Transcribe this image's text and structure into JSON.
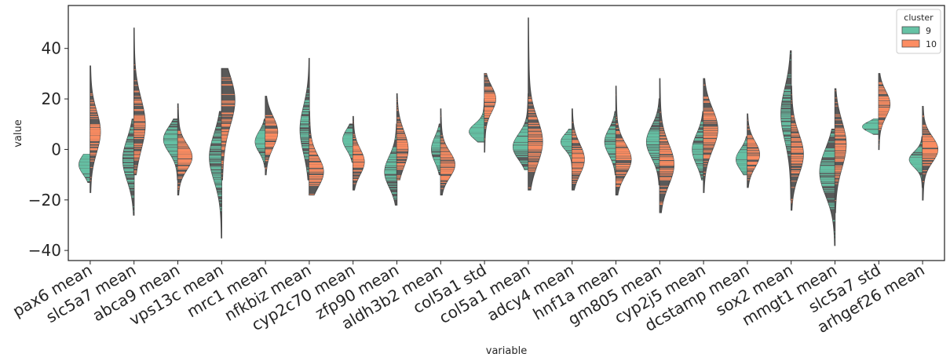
{
  "chart_data": {
    "type": "violin",
    "split": true,
    "inner": "stick",
    "xlabel": "variable",
    "ylabel": "value",
    "ylim": [
      -44,
      57
    ],
    "yticks": [
      -40,
      -20,
      0,
      20,
      40
    ],
    "ytick_labels": [
      "−40",
      "−20",
      "0",
      "20",
      "40"
    ],
    "grid": false,
    "legend": {
      "title": "cluster",
      "placement": "top-right",
      "entries": [
        {
          "label": "9",
          "color": "#66c2a5"
        },
        {
          "label": "10",
          "color": "#fc8d62"
        }
      ]
    },
    "colors": {
      "9": "#66c2a5",
      "10": "#fc8d62",
      "body": "#595959",
      "outline": "#4c4c4c"
    },
    "categories": [
      "pax6 mean",
      "slc5a7 mean",
      "abca9 mean",
      "vps13c mean",
      "mrc1 mean",
      "nfkbiz mean",
      "cyp2c70 mean",
      "zfp90 mean",
      "aldh3b2 mean",
      "col5a1 std",
      "col5a1 mean",
      "adcy4 mean",
      "hnf1a mean",
      "gm805 mean",
      "cyp2j5 mean",
      "dcstamp mean",
      "sox2 mean",
      "mmgt1 mean",
      "slc5a7 std",
      "arhgef26 mean"
    ],
    "series": [
      {
        "name": "9",
        "distributions": [
          {
            "min": -13,
            "max": -2,
            "median": -6,
            "peak": -6,
            "spread": 4,
            "width": 0.55
          },
          {
            "min": -26,
            "max": 12,
            "median": -5,
            "peak": -4,
            "spread": 8,
            "width": 0.55
          },
          {
            "min": -12,
            "max": 12,
            "median": 3,
            "peak": 4,
            "spread": 5,
            "width": 0.7
          },
          {
            "min": -35,
            "max": 15,
            "median": -5,
            "peak": -3,
            "spread": 9,
            "width": 0.6
          },
          {
            "min": -7,
            "max": 12,
            "median": 3,
            "peak": 3,
            "spread": 4,
            "width": 0.5
          },
          {
            "min": -12,
            "max": 36,
            "median": 5,
            "peak": 8,
            "spread": 9,
            "width": 0.45
          },
          {
            "min": -5,
            "max": 10,
            "median": 3,
            "peak": 4,
            "spread": 4,
            "width": 0.5
          },
          {
            "min": -22,
            "max": 10,
            "median": -7,
            "peak": -9,
            "spread": 6,
            "width": 0.6
          },
          {
            "min": -10,
            "max": 10,
            "median": 0,
            "peak": 0,
            "spread": 5,
            "width": 0.45
          },
          {
            "min": 3,
            "max": 20,
            "median": 8,
            "peak": 7,
            "spread": 3,
            "width": 0.75
          },
          {
            "min": -8,
            "max": 22,
            "median": 2,
            "peak": 1,
            "spread": 5,
            "width": 0.75
          },
          {
            "min": -7,
            "max": 8,
            "median": 3,
            "peak": 3,
            "spread": 3,
            "width": 0.55
          },
          {
            "min": -10,
            "max": 15,
            "median": 3,
            "peak": 3,
            "spread": 5,
            "width": 0.55
          },
          {
            "min": -14,
            "max": 20,
            "median": 2,
            "peak": 3,
            "spread": 6,
            "width": 0.65
          },
          {
            "min": -12,
            "max": 15,
            "median": 0,
            "peak": 0,
            "spread": 6,
            "width": 0.55
          },
          {
            "min": -10,
            "max": 5,
            "median": -4,
            "peak": -4,
            "spread": 4,
            "width": 0.55
          },
          {
            "min": -20,
            "max": 39,
            "median": 12,
            "peak": 14,
            "spread": 10,
            "width": 0.5
          },
          {
            "min": -38,
            "max": 8,
            "median": -9,
            "peak": -9,
            "spread": 9,
            "width": 0.75
          },
          {
            "min": 6,
            "max": 12,
            "median": 9,
            "peak": 9,
            "spread": 2,
            "width": 0.8
          },
          {
            "min": -15,
            "max": 5,
            "median": -4,
            "peak": -4,
            "spread": 3,
            "width": 0.65
          }
        ]
      },
      {
        "name": "10",
        "distributions": [
          {
            "min": -17,
            "max": 33,
            "median": 7,
            "peak": 7,
            "spread": 8,
            "width": 0.5
          },
          {
            "min": -10,
            "max": 48,
            "median": 8,
            "peak": 10,
            "spread": 10,
            "width": 0.55
          },
          {
            "min": -18,
            "max": 18,
            "median": -3,
            "peak": -3,
            "spread": 5,
            "width": 0.7
          },
          {
            "min": -12,
            "max": 32,
            "median": 5,
            "peak": 20,
            "spread": 10,
            "width": 0.65
          },
          {
            "min": -10,
            "max": 21,
            "median": 5,
            "peak": 7,
            "spread": 6,
            "width": 0.6
          },
          {
            "min": -18,
            "max": 15,
            "median": -5,
            "peak": -9,
            "spread": 6,
            "width": 0.7
          },
          {
            "min": -16,
            "max": 13,
            "median": -3,
            "peak": -5,
            "spread": 5,
            "width": 0.55
          },
          {
            "min": -12,
            "max": 22,
            "median": 2,
            "peak": 0,
            "spread": 7,
            "width": 0.55
          },
          {
            "min": -18,
            "max": 16,
            "median": -5,
            "peak": -6,
            "spread": 5,
            "width": 0.7
          },
          {
            "min": -1,
            "max": 30,
            "median": 18,
            "peak": 20,
            "spread": 5,
            "width": 0.55
          },
          {
            "min": -16,
            "max": 52,
            "median": 5,
            "peak": 3,
            "spread": 9,
            "width": 0.7
          },
          {
            "min": -16,
            "max": 16,
            "median": -3,
            "peak": -4,
            "spread": 6,
            "width": 0.6
          },
          {
            "min": -18,
            "max": 25,
            "median": -3,
            "peak": -4,
            "spread": 6,
            "width": 0.75
          },
          {
            "min": -25,
            "max": 28,
            "median": -5,
            "peak": -6,
            "spread": 8,
            "width": 0.7
          },
          {
            "min": -17,
            "max": 28,
            "median": 7,
            "peak": 8,
            "spread": 8,
            "width": 0.7
          },
          {
            "min": -15,
            "max": 14,
            "median": -2,
            "peak": -2,
            "spread": 5,
            "width": 0.6
          },
          {
            "min": -24,
            "max": 25,
            "median": 0,
            "peak": -2,
            "spread": 8,
            "width": 0.6
          },
          {
            "min": -25,
            "max": 24,
            "median": 0,
            "peak": 2,
            "spread": 9,
            "width": 0.55
          },
          {
            "min": 0,
            "max": 30,
            "median": 17,
            "peak": 18,
            "spread": 5,
            "width": 0.55
          },
          {
            "min": -20,
            "max": 17,
            "median": -1,
            "peak": 0,
            "spread": 5,
            "width": 0.75
          }
        ]
      }
    ]
  }
}
